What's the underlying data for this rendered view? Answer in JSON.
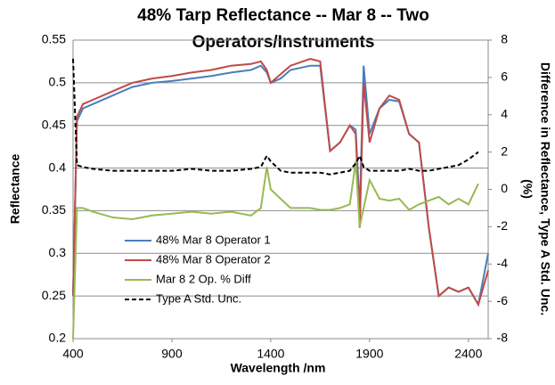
{
  "chart_data": {
    "type": "line",
    "title": [
      "48% Tarp Reflectance -- Mar 8 -- Two",
      "Operators/Instruments"
    ],
    "xlabel": "Wavelength /nm",
    "ylabel": "Reflectance",
    "y2label": [
      "Difference in Reflectance, Type A Std. Unc.",
      "(%)"
    ],
    "xlim": [
      400,
      2500
    ],
    "xticks": [
      400,
      900,
      1400,
      1900,
      2400
    ],
    "ylim": [
      0.2,
      0.55
    ],
    "yticks": [
      0.2,
      0.25,
      0.3,
      0.35,
      0.4,
      0.45,
      0.5,
      0.55
    ],
    "y2lim": [
      -8,
      8
    ],
    "y2ticks": [
      -8,
      -6,
      -4,
      -2,
      0,
      2,
      4,
      6,
      8
    ],
    "grid": true,
    "x": [
      400,
      420,
      450,
      500,
      600,
      700,
      800,
      900,
      1000,
      1100,
      1200,
      1300,
      1350,
      1380,
      1400,
      1450,
      1500,
      1600,
      1650,
      1700,
      1750,
      1800,
      1830,
      1850,
      1870,
      1900,
      1950,
      2000,
      2050,
      2100,
      2150,
      2200,
      2250,
      2300,
      2350,
      2400,
      2450,
      2500
    ],
    "series": [
      {
        "name": "48% Mar 8 Operator 1",
        "color": "#4a7ebb",
        "values": [
          0.25,
          0.455,
          0.47,
          0.475,
          0.485,
          0.495,
          0.5,
          0.502,
          0.505,
          0.508,
          0.512,
          0.515,
          0.52,
          0.512,
          0.5,
          0.505,
          0.515,
          0.52,
          0.52,
          0.42,
          0.43,
          0.45,
          0.445,
          0.35,
          0.52,
          0.44,
          0.47,
          0.48,
          0.478,
          0.44,
          0.43,
          0.33,
          0.25,
          0.26,
          0.255,
          0.26,
          0.24,
          0.3
        ]
      },
      {
        "name": "48% Mar 8 Operator 2",
        "color": "#be4b48",
        "values": [
          0.25,
          0.46,
          0.475,
          0.48,
          0.49,
          0.5,
          0.505,
          0.508,
          0.512,
          0.515,
          0.52,
          0.522,
          0.525,
          0.515,
          0.5,
          0.51,
          0.52,
          0.528,
          0.525,
          0.42,
          0.43,
          0.45,
          0.44,
          0.33,
          0.5,
          0.43,
          0.47,
          0.485,
          0.48,
          0.44,
          0.43,
          0.33,
          0.25,
          0.26,
          0.255,
          0.26,
          0.24,
          0.28
        ]
      },
      {
        "name": "Mar 8  2 Op. % Diff",
        "color": "#98b954",
        "axis": "y2",
        "values": [
          -8,
          -1,
          -1,
          -1.2,
          -1.5,
          -1.6,
          -1.4,
          -1.3,
          -1.2,
          -1.3,
          -1.2,
          -1.4,
          -1,
          1.2,
          0,
          -0.5,
          -1,
          -1,
          -1.1,
          -1.1,
          -1.0,
          -0.8,
          1.5,
          -2,
          -1,
          0.5,
          -0.5,
          -0.6,
          -0.5,
          -1.1,
          -0.8,
          -0.6,
          -0.4,
          -0.8,
          -0.5,
          -0.8,
          0.3,
          null
        ]
      },
      {
        "name": "Type A Std. Unc.",
        "color": "#000000",
        "axis": "y2",
        "dashed": true,
        "values": [
          7,
          1.3,
          1.2,
          1.1,
          1.0,
          1.0,
          1.0,
          1.0,
          1.1,
          1.0,
          1.0,
          1.1,
          1.2,
          1.8,
          1.5,
          1.0,
          0.9,
          0.9,
          0.9,
          0.8,
          0.9,
          1.0,
          1.4,
          1.8,
          1.2,
          1.0,
          1.0,
          1.0,
          1.0,
          1.1,
          1.0,
          1.0,
          1.1,
          1.2,
          1.3,
          1.6,
          2.0,
          null
        ]
      }
    ]
  }
}
